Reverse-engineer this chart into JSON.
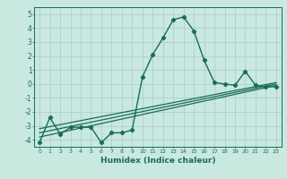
{
  "title": "",
  "xlabel": "Humidex (Indice chaleur)",
  "ylabel": "",
  "xlim": [
    -0.5,
    23.5
  ],
  "ylim": [
    -4.5,
    5.5
  ],
  "yticks": [
    -4,
    -3,
    -2,
    -1,
    0,
    1,
    2,
    3,
    4,
    5
  ],
  "xticks": [
    0,
    1,
    2,
    3,
    4,
    5,
    6,
    7,
    8,
    9,
    10,
    11,
    12,
    13,
    14,
    15,
    16,
    17,
    18,
    19,
    20,
    21,
    22,
    23
  ],
  "bg_color": "#c8e8e0",
  "line_color": "#1a6b5a",
  "grid_color": "#a8ccc8",
  "lines": [
    {
      "x": [
        0,
        1,
        2,
        3,
        4,
        5,
        6,
        7,
        8,
        9,
        10,
        11,
        12,
        13,
        14,
        15,
        16,
        17,
        18,
        19,
        20,
        21,
        22,
        23
      ],
      "y": [
        -4.2,
        -2.4,
        -3.6,
        -3.1,
        -3.1,
        -3.1,
        -4.2,
        -3.5,
        -3.5,
        -3.3,
        0.5,
        2.1,
        3.3,
        4.6,
        4.8,
        3.8,
        1.7,
        0.1,
        0.0,
        -0.1,
        0.9,
        -0.1,
        -0.2,
        -0.2
      ],
      "marker": "D",
      "linewidth": 1.0,
      "markersize": 2.2
    },
    {
      "x": [
        0,
        23
      ],
      "y": [
        -3.8,
        -0.1
      ],
      "marker": null,
      "linewidth": 0.9,
      "markersize": 0
    },
    {
      "x": [
        0,
        23
      ],
      "y": [
        -3.5,
        0.0
      ],
      "marker": null,
      "linewidth": 0.9,
      "markersize": 0
    },
    {
      "x": [
        0,
        23
      ],
      "y": [
        -3.2,
        0.1
      ],
      "marker": null,
      "linewidth": 0.9,
      "markersize": 0
    }
  ]
}
